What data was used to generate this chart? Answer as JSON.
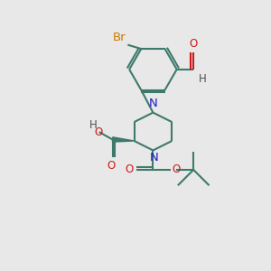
{
  "bg_color": "#e8e8e8",
  "bond_color": "#3d7a6b",
  "bond_lw": 1.5,
  "N_color": "#1a1acc",
  "O_color": "#cc1a1a",
  "Br_color": "#cc7700",
  "C_color": "#505050",
  "fs": 8.5,
  "dpi": 100,
  "xlim": [
    0,
    10
  ],
  "ylim": [
    0,
    10
  ]
}
